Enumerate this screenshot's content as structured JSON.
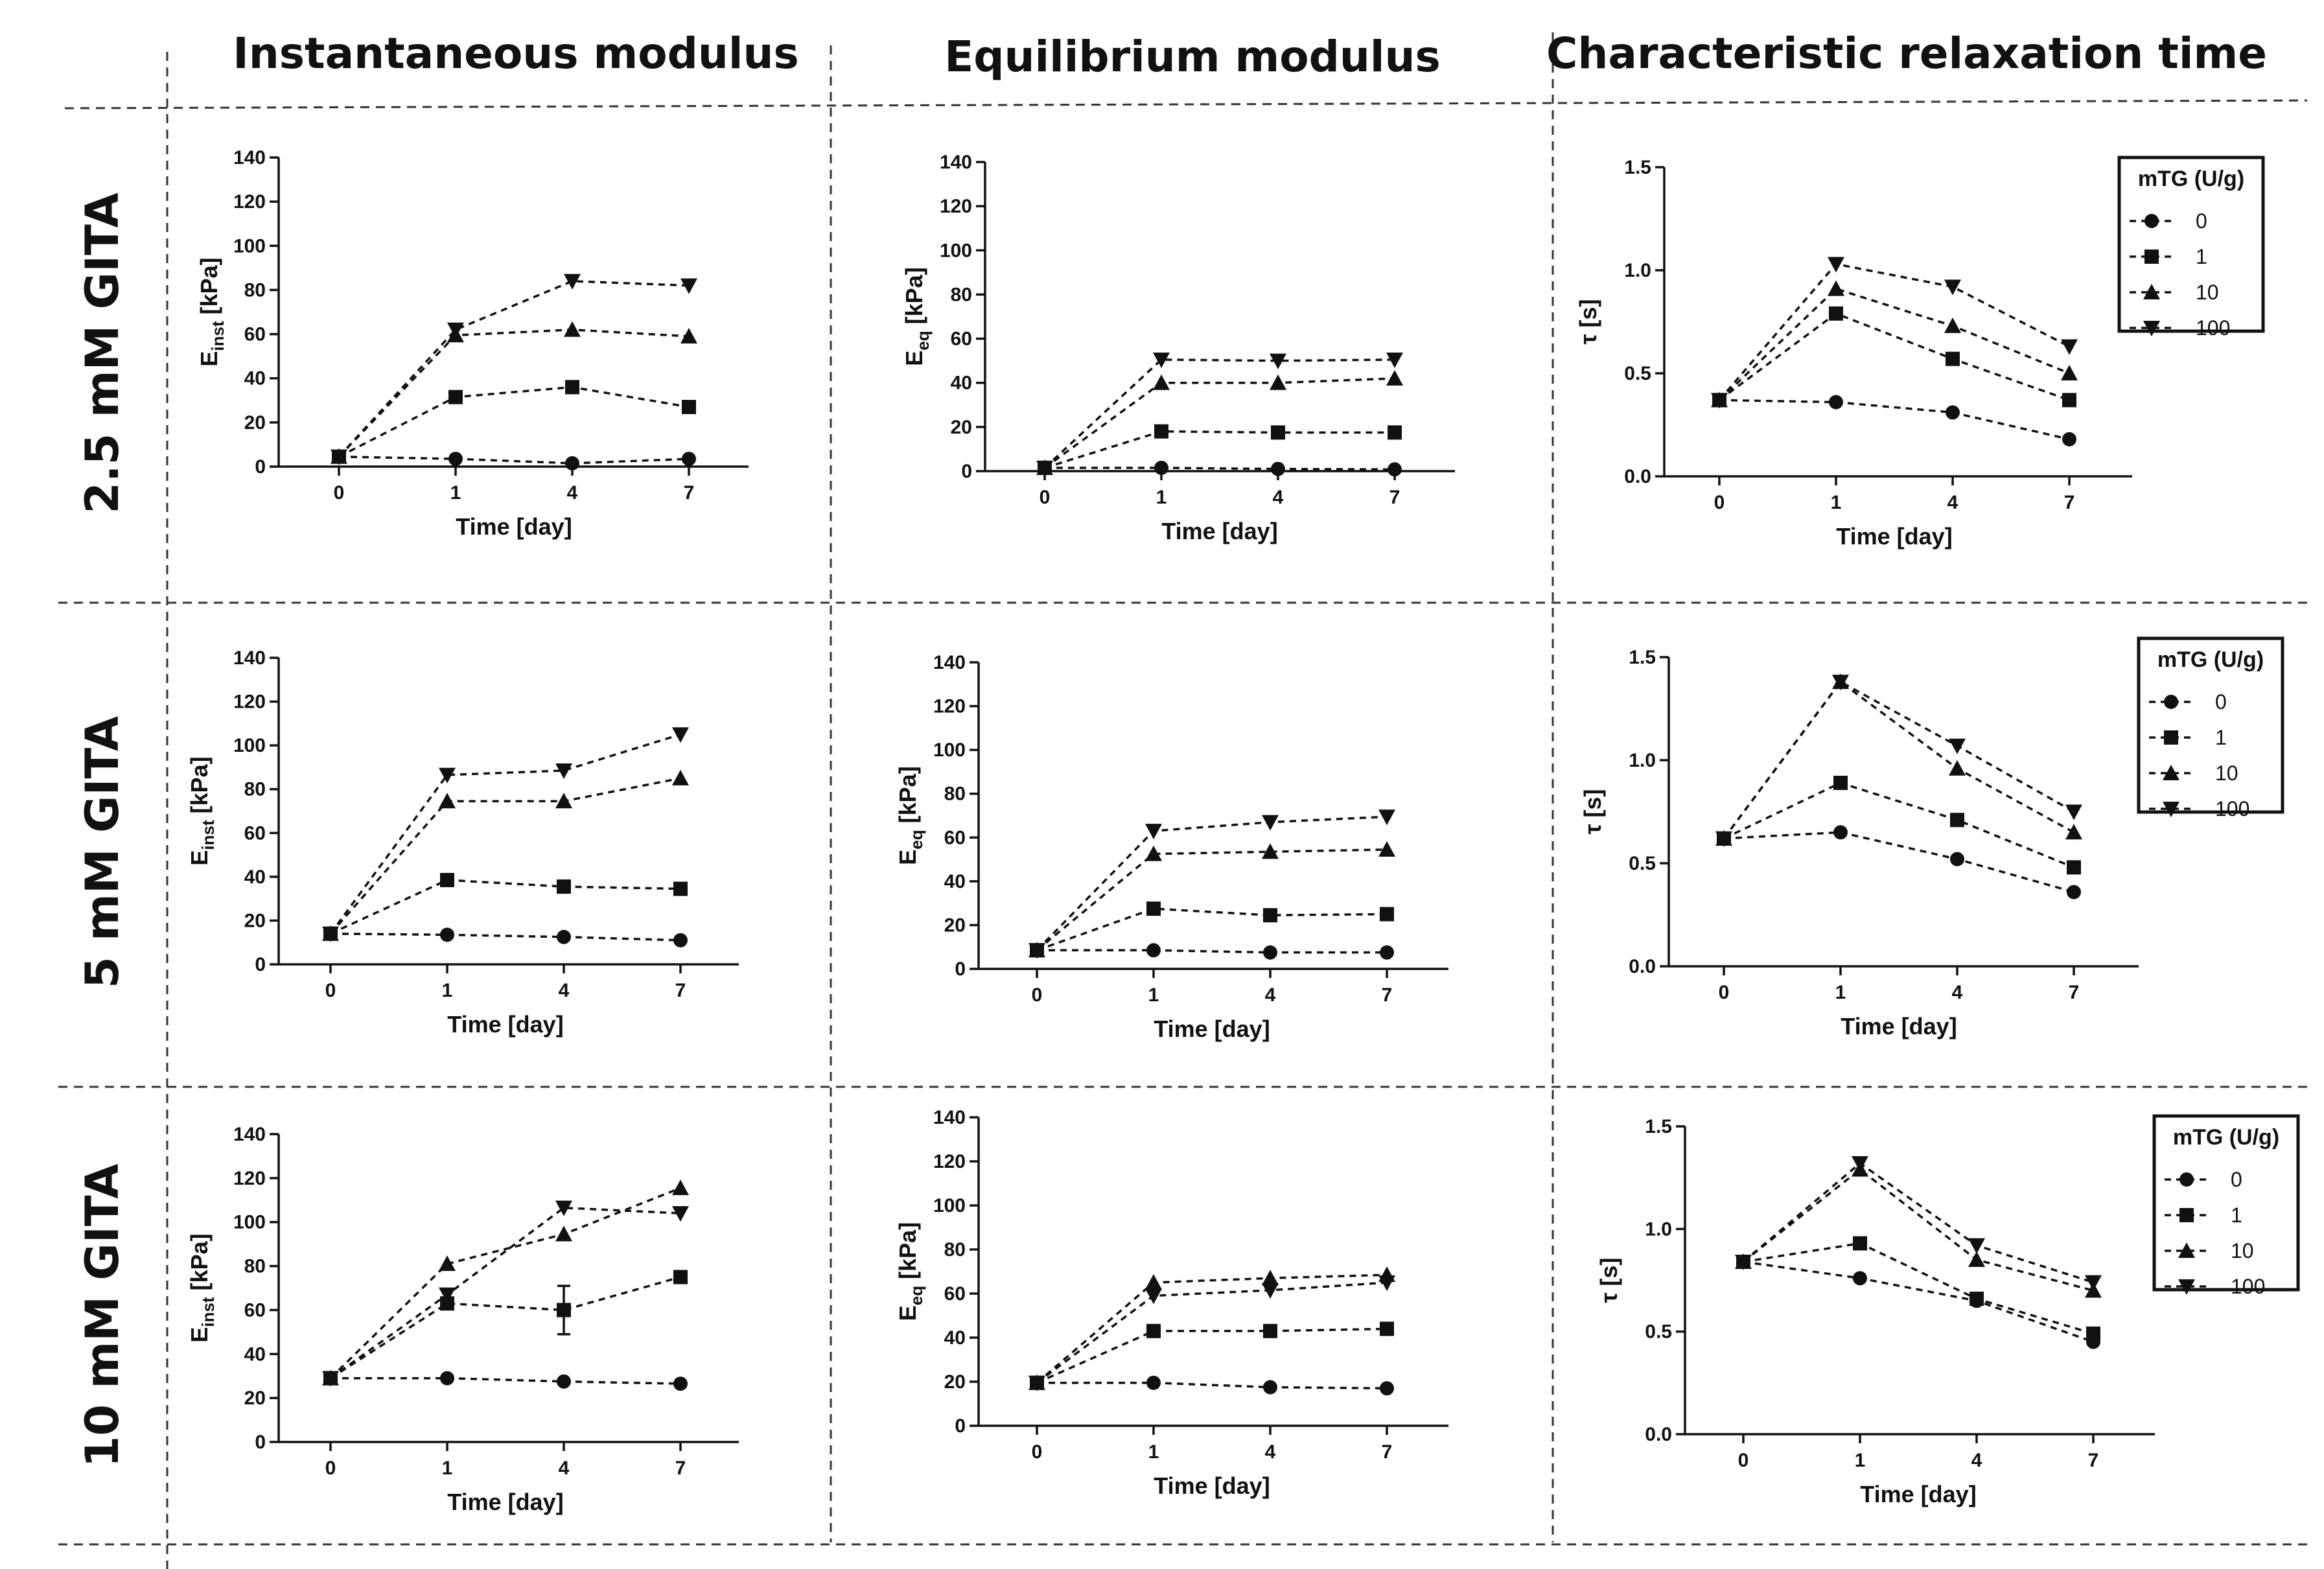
{
  "column_titles": [
    "Instantaneous modulus",
    "Equilibrium modulus",
    "Characteristic relaxation time"
  ],
  "row_labels": [
    "2.5 mM GITA",
    "5 mM GITA",
    "10 mM GITA"
  ],
  "legend": {
    "title": "mTG (U/g)",
    "entries": [
      "0",
      "1",
      "10",
      "100"
    ]
  },
  "chart_data": [
    {
      "type": "line",
      "row": 0,
      "col": 0,
      "title": "2.5 mM GITA - Instantaneous modulus",
      "xlabel": "Time [day]",
      "ylabel_main": "E",
      "ylabel_sub": "inst",
      "ylabel_unit": " [kPa]",
      "categories": [
        "0",
        "1",
        "4",
        "7"
      ],
      "ylim": [
        0,
        140
      ],
      "yticks": [
        "0",
        "20",
        "40",
        "60",
        "80",
        "100",
        "120",
        "140"
      ],
      "series": [
        {
          "name": "0",
          "marker": "circle",
          "values": [
            4.5,
            3.5,
            1.5,
            3.5
          ]
        },
        {
          "name": "1",
          "marker": "square",
          "values": [
            4.5,
            31.5,
            36,
            27
          ]
        },
        {
          "name": "10",
          "marker": "triangle-up",
          "values": [
            4.5,
            59.5,
            62,
            59
          ]
        },
        {
          "name": "100",
          "marker": "triangle-down",
          "values": [
            4.5,
            62,
            84,
            82
          ]
        }
      ]
    },
    {
      "type": "line",
      "row": 0,
      "col": 1,
      "title": "2.5 mM GITA - Equilibrium modulus",
      "xlabel": "Time [day]",
      "ylabel_main": "E",
      "ylabel_sub": "eq",
      "ylabel_unit": " [kPa]",
      "categories": [
        "0",
        "1",
        "4",
        "7"
      ],
      "ylim": [
        0,
        140
      ],
      "yticks": [
        "0",
        "20",
        "40",
        "60",
        "80",
        "100",
        "120",
        "140"
      ],
      "series": [
        {
          "name": "0",
          "marker": "circle",
          "values": [
            1.5,
            1.5,
            1,
            0.8
          ]
        },
        {
          "name": "1",
          "marker": "square",
          "values": [
            1.5,
            18,
            17.5,
            17.5
          ]
        },
        {
          "name": "10",
          "marker": "triangle-up",
          "values": [
            1.5,
            40,
            40,
            42
          ]
        },
        {
          "name": "100",
          "marker": "triangle-down",
          "values": [
            1.5,
            50.5,
            50,
            50.5
          ]
        }
      ]
    },
    {
      "type": "line",
      "row": 0,
      "col": 2,
      "title": "2.5 mM GITA - Characteristic relaxation time",
      "xlabel": "Time [day]",
      "ylabel_main": "τ [s]",
      "ylabel_sub": "",
      "ylabel_unit": "",
      "categories": [
        "0",
        "1",
        "4",
        "7"
      ],
      "ylim": [
        0,
        1.5
      ],
      "yticks": [
        "0.0",
        "0.5",
        "1.0",
        "1.5"
      ],
      "series": [
        {
          "name": "0",
          "marker": "circle",
          "values": [
            0.37,
            0.36,
            0.31,
            0.18
          ]
        },
        {
          "name": "1",
          "marker": "square",
          "values": [
            0.37,
            0.79,
            0.57,
            0.37
          ]
        },
        {
          "name": "10",
          "marker": "triangle-up",
          "values": [
            0.37,
            0.91,
            0.73,
            0.5
          ]
        },
        {
          "name": "100",
          "marker": "triangle-down",
          "values": [
            0.37,
            1.03,
            0.92,
            0.63
          ]
        }
      ]
    },
    {
      "type": "line",
      "row": 1,
      "col": 0,
      "title": "5 mM GITA - Instantaneous modulus",
      "xlabel": "Time [day]",
      "ylabel_main": "E",
      "ylabel_sub": "inst",
      "ylabel_unit": " [kPa]",
      "categories": [
        "0",
        "1",
        "4",
        "7"
      ],
      "ylim": [
        0,
        140
      ],
      "yticks": [
        "0",
        "20",
        "40",
        "60",
        "80",
        "100",
        "120",
        "140"
      ],
      "series": [
        {
          "name": "0",
          "marker": "circle",
          "values": [
            14,
            13.5,
            12.5,
            11
          ]
        },
        {
          "name": "1",
          "marker": "square",
          "values": [
            14,
            38.5,
            35.5,
            34.5
          ]
        },
        {
          "name": "10",
          "marker": "triangle-up",
          "values": [
            14,
            74.5,
            74.5,
            85
          ]
        },
        {
          "name": "100",
          "marker": "triangle-down",
          "values": [
            14,
            86.5,
            88.5,
            105
          ]
        }
      ]
    },
    {
      "type": "line",
      "row": 1,
      "col": 1,
      "title": "5 mM GITA - Equilibrium modulus",
      "xlabel": "Time [day]",
      "ylabel_main": "E",
      "ylabel_sub": "eq",
      "ylabel_unit": " [kPa]",
      "categories": [
        "0",
        "1",
        "4",
        "7"
      ],
      "ylim": [
        0,
        140
      ],
      "yticks": [
        "0",
        "20",
        "40",
        "60",
        "80",
        "100",
        "120",
        "140"
      ],
      "series": [
        {
          "name": "0",
          "marker": "circle",
          "values": [
            8.5,
            8.5,
            7.5,
            7.5
          ]
        },
        {
          "name": "1",
          "marker": "square",
          "values": [
            8.5,
            27.5,
            24.5,
            25
          ]
        },
        {
          "name": "10",
          "marker": "triangle-up",
          "values": [
            8.5,
            52.5,
            53.5,
            54.5
          ]
        },
        {
          "name": "100",
          "marker": "triangle-down",
          "values": [
            8.5,
            63,
            67,
            69.5
          ]
        }
      ]
    },
    {
      "type": "line",
      "row": 1,
      "col": 2,
      "title": "5 mM GITA - Characteristic relaxation time",
      "xlabel": "Time [day]",
      "ylabel_main": "τ [s]",
      "ylabel_sub": "",
      "ylabel_unit": "",
      "categories": [
        "0",
        "1",
        "4",
        "7"
      ],
      "ylim": [
        0,
        1.5
      ],
      "yticks": [
        "0.0",
        "0.5",
        "1.0",
        "1.5"
      ],
      "series": [
        {
          "name": "0",
          "marker": "circle",
          "values": [
            0.62,
            0.65,
            0.52,
            0.36
          ]
        },
        {
          "name": "1",
          "marker": "square",
          "values": [
            0.62,
            0.89,
            0.71,
            0.48
          ]
        },
        {
          "name": "10",
          "marker": "triangle-up",
          "values": [
            0.62,
            1.38,
            0.96,
            0.65
          ]
        },
        {
          "name": "100",
          "marker": "triangle-down",
          "values": [
            0.62,
            1.38,
            1.07,
            0.75
          ]
        }
      ]
    },
    {
      "type": "line",
      "row": 2,
      "col": 0,
      "title": "10 mM GITA - Instantaneous modulus",
      "xlabel": "Time [day]",
      "ylabel_main": "E",
      "ylabel_sub": "inst",
      "ylabel_unit": " [kPa]",
      "categories": [
        "0",
        "1",
        "4",
        "7"
      ],
      "ylim": [
        0,
        140
      ],
      "yticks": [
        "0",
        "20",
        "40",
        "60",
        "80",
        "100",
        "120",
        "140"
      ],
      "series": [
        {
          "name": "0",
          "marker": "circle",
          "values": [
            29,
            29,
            27.5,
            26.5
          ]
        },
        {
          "name": "1",
          "marker": "square",
          "values": [
            29,
            63,
            60,
            75
          ],
          "error": [
            0,
            0,
            11,
            0
          ]
        },
        {
          "name": "10",
          "marker": "triangle-up",
          "values": [
            29,
            81,
            94.5,
            115.5
          ]
        },
        {
          "name": "100",
          "marker": "triangle-down",
          "values": [
            29,
            67,
            106.5,
            104
          ]
        }
      ]
    },
    {
      "type": "line",
      "row": 2,
      "col": 1,
      "title": "10 mM GITA - Equilibrium modulus",
      "xlabel": "Time [day]",
      "ylabel_main": "E",
      "ylabel_sub": "eq",
      "ylabel_unit": " [kPa]",
      "categories": [
        "0",
        "1",
        "4",
        "7"
      ],
      "ylim": [
        0,
        140
      ],
      "yticks": [
        "0",
        "20",
        "40",
        "60",
        "80",
        "100",
        "120",
        "140"
      ],
      "series": [
        {
          "name": "0",
          "marker": "circle",
          "values": [
            19.5,
            19.5,
            17.5,
            17
          ]
        },
        {
          "name": "1",
          "marker": "square",
          "values": [
            19.5,
            43,
            43,
            44
          ]
        },
        {
          "name": "10",
          "marker": "triangle-up",
          "values": [
            19.5,
            65,
            67,
            68.5
          ]
        },
        {
          "name": "100",
          "marker": "triangle-down",
          "values": [
            19.5,
            59,
            61.5,
            65
          ]
        }
      ]
    },
    {
      "type": "line",
      "row": 2,
      "col": 2,
      "title": "10 mM GITA - Characteristic relaxation time",
      "xlabel": "Time [day]",
      "ylabel_main": "τ [s]",
      "ylabel_sub": "",
      "ylabel_unit": "",
      "categories": [
        "0",
        "1",
        "4",
        "7"
      ],
      "ylim": [
        0,
        1.5
      ],
      "yticks": [
        "0.0",
        "0.5",
        "1.0",
        "1.5"
      ],
      "series": [
        {
          "name": "0",
          "marker": "circle",
          "values": [
            0.84,
            0.76,
            0.65,
            0.45
          ]
        },
        {
          "name": "1",
          "marker": "square",
          "values": [
            0.84,
            0.93,
            0.66,
            0.49
          ]
        },
        {
          "name": "10",
          "marker": "triangle-up",
          "values": [
            0.84,
            1.29,
            0.85,
            0.7
          ]
        },
        {
          "name": "100",
          "marker": "triangle-down",
          "values": [
            0.84,
            1.32,
            0.92,
            0.74
          ]
        }
      ]
    }
  ]
}
